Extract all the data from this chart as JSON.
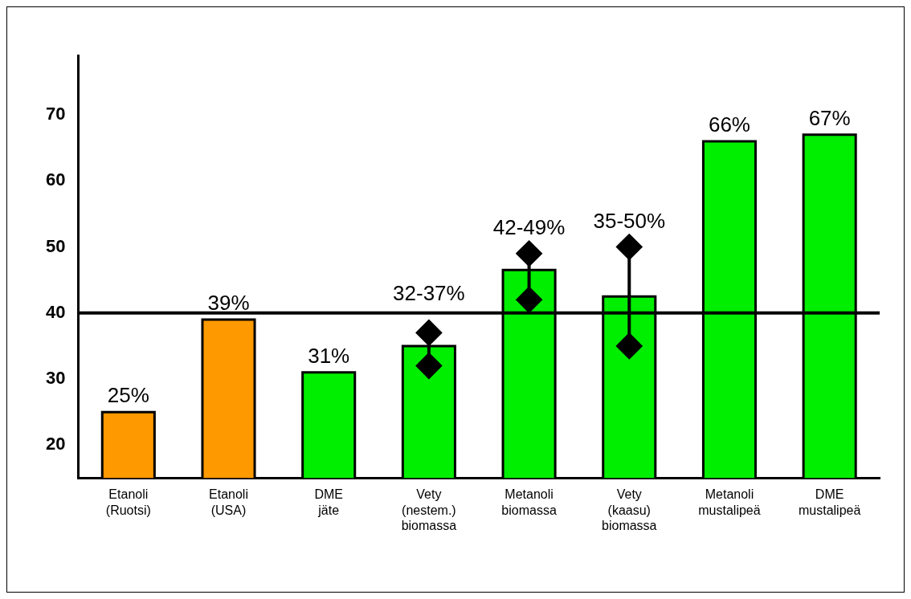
{
  "chart_data": {
    "type": "bar",
    "categories": [
      "Etanoli\n(Ruotsi)",
      "Etanoli\n(USA)",
      "DME\njäte",
      "Vety\n(nestem.)\nbiomassa",
      "Metanoli\nbiomassa",
      "Vety\n(kaasu)\nbiomassa",
      "Metanoli\nmustalipeä",
      "DME\nmustalipeä"
    ],
    "series": [
      {
        "values": [
          25,
          39,
          31,
          35,
          46.5,
          42.5,
          66,
          67
        ],
        "colors": [
          "#ff9900",
          "#ff9900",
          "#00ee00",
          "#00ee00",
          "#00ee00",
          "#00ee00",
          "#00ee00",
          "#00ee00"
        ],
        "value_labels": [
          "25%",
          "39%",
          "31%",
          null,
          null,
          null,
          "66%",
          "67%"
        ]
      },
      {
        "type": "line",
        "x": [
          "Vety\n(nestem.)\nbiomassa",
          "Vety\n(nestem.)\nbiomassa"
        ],
        "values": [
          32,
          37
        ],
        "color": "#000000",
        "marker": "diamond"
      },
      {
        "type": "line",
        "x": [
          "Metanoli\nbiomassa",
          "Metanoli\nbiomassa"
        ],
        "values": [
          42,
          49
        ],
        "color": "#000000",
        "marker": "diamond"
      },
      {
        "type": "line",
        "x": [
          "Vety\n(kaasu)\nbiomassa",
          "Vety\n(kaasu)\nbiomassa"
        ],
        "values": [
          35,
          50
        ],
        "color": "#000000",
        "marker": "diamond"
      }
    ],
    "annotations": [
      {
        "text": "32-37%",
        "x": "Vety\n(nestem.)\nbiomassa",
        "y": 37
      },
      {
        "text": "42-49%",
        "x": "Metanoli\nbiomassa",
        "y": 49
      },
      {
        "text": "35-50%",
        "x": "Vety\n(kaasu)\nbiomassa",
        "y": 50
      }
    ],
    "ylim": [
      15,
      79
    ],
    "yticks": [
      20,
      30,
      40,
      50,
      60,
      70
    ],
    "ref_lines": [
      {
        "axis": "y",
        "value": 40,
        "color": "#000000"
      }
    ],
    "grid": false,
    "legend": false
  }
}
